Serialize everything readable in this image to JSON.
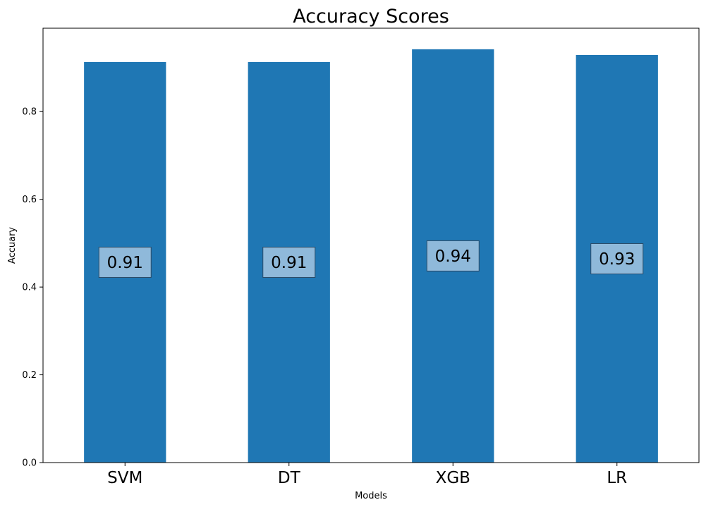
{
  "chart_data": {
    "type": "bar",
    "title": "Accuracy Scores",
    "xlabel": "Models",
    "ylabel": "Accuary",
    "categories": [
      "SVM",
      "DT",
      "XGB",
      "LR"
    ],
    "values": [
      0.913,
      0.913,
      0.942,
      0.929
    ],
    "data_labels": [
      "0.91",
      "0.91",
      "0.94",
      "0.93"
    ],
    "ylim": [
      0,
      0.99
    ],
    "yticks": [
      0.0,
      0.2,
      0.4,
      0.6,
      0.8
    ],
    "ytick_labels": [
      "0.0",
      "0.2",
      "0.4",
      "0.6",
      "0.8"
    ],
    "grid": false,
    "bar_color": "#1f77b4",
    "label_box_color": "#8fb9da",
    "label_box_border_color": "#2b4a66"
  }
}
